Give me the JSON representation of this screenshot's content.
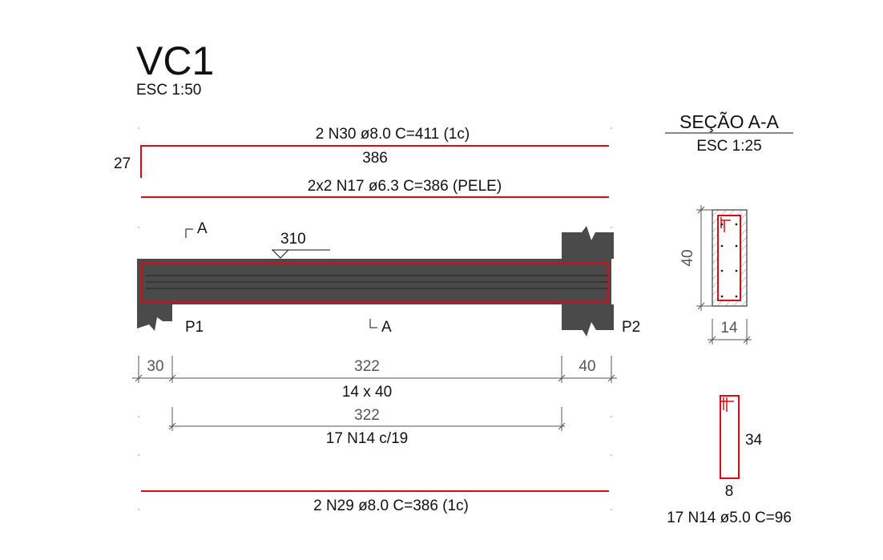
{
  "title": {
    "main": "VC1",
    "scale": "ESC 1:50"
  },
  "section": {
    "title": "SEÇÃO A-A",
    "scale": "ESC 1:25",
    "height_dim": "40",
    "width_dim": "14"
  },
  "top_bar": {
    "label": "2 N30 ø8.0  C=411 (1c)",
    "length": "386",
    "hook": "27"
  },
  "skin_bar": {
    "label": "2x2 N17 ø6.3  C=386 (PELE)"
  },
  "bottom_bar": {
    "label": "2 N29 ø8.0  C=386 (1c)"
  },
  "beam": {
    "level": "310",
    "section_mark": "A",
    "support_left": "P1",
    "support_right": "P2",
    "size": "14 x 40"
  },
  "dims": {
    "left": "30",
    "span": "322",
    "right": "40",
    "stirrup_span": "322"
  },
  "stirrups": {
    "label": "17 N14 c/19",
    "detail_height": "34",
    "detail_width": "8",
    "detail_label": "17 N14 ø5.0  C=96"
  },
  "colors": {
    "rebar": "#e30613",
    "concrete": "#4a4a4a",
    "line": "#111111"
  }
}
